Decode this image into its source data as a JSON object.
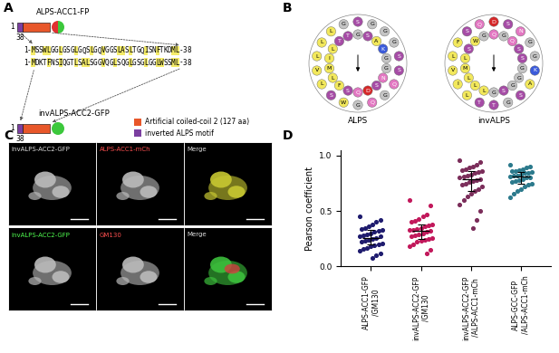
{
  "panel_labels": [
    "A",
    "B",
    "C",
    "D"
  ],
  "schematic": {
    "constructs": [
      {
        "name": "ALPS-ACC1-FP",
        "start": 1,
        "end": 38,
        "fp_colors": [
          "#e03030",
          "#3cc83c"
        ]
      },
      {
        "name": "invALPS-ACC2-GFP",
        "start": 1,
        "end": 38,
        "fp_colors": [
          "#3cc83c",
          "#3cc83c"
        ]
      }
    ],
    "sequences": [
      "1-MSSWLGGLGSGLGQSLGQVGGSLASLTGQISNFTKDML-38",
      "1-MDKTFNSIQGTLSALSGGVQGLSQGLGSGLGGLWSSML-38"
    ],
    "legend": [
      {
        "label": "Artificial coiled-coil 2 (127 aa)",
        "color": "#e8572a"
      },
      {
        "label": "inverted ALPS motif",
        "color": "#7b3fa0"
      }
    ]
  },
  "helical_wheels": {
    "labels": [
      "ALPS",
      "invALPS"
    ]
  },
  "images": {
    "rows": [
      [
        "invALPS-ACC2-GFP",
        "ALPS-ACC1-mCh",
        "Merge"
      ],
      [
        "invALPS-ACC2-GFP",
        "GM130",
        "Merge"
      ]
    ]
  },
  "chart_data": {
    "type": "scatter",
    "ylabel": "Pearson coefficient",
    "categories": [
      "ALPS-ACC1-GFP/GM130",
      "invALPS-ACC2-GFP/GM130",
      "invALPS-ACC2-GFP/ALPS-ACC1-mCh",
      "ALPS-GCC-GFP/ALPS-ACC1-mCh"
    ],
    "colors": [
      "#1e1b6e",
      "#c2185b",
      "#7b2d5a",
      "#2b7a8c"
    ],
    "values": [
      [
        0.45,
        0.42,
        0.4,
        0.38,
        0.36,
        0.35,
        0.34,
        0.33,
        0.32,
        0.31,
        0.3,
        0.29,
        0.28,
        0.27,
        0.27,
        0.26,
        0.25,
        0.24,
        0.23,
        0.22,
        0.21,
        0.2,
        0.19,
        0.18,
        0.17,
        0.16,
        0.14,
        0.12,
        0.1,
        0.08
      ],
      [
        0.6,
        0.55,
        0.47,
        0.45,
        0.43,
        0.41,
        0.4,
        0.38,
        0.37,
        0.36,
        0.35,
        0.34,
        0.33,
        0.33,
        0.32,
        0.31,
        0.3,
        0.29,
        0.28,
        0.27,
        0.26,
        0.25,
        0.24,
        0.23,
        0.22,
        0.2,
        0.18,
        0.15,
        0.12
      ],
      [
        0.96,
        0.94,
        0.92,
        0.9,
        0.89,
        0.88,
        0.87,
        0.86,
        0.85,
        0.84,
        0.83,
        0.82,
        0.81,
        0.8,
        0.79,
        0.78,
        0.77,
        0.76,
        0.75,
        0.74,
        0.72,
        0.7,
        0.68,
        0.66,
        0.63,
        0.6,
        0.56,
        0.5,
        0.42,
        0.35
      ],
      [
        0.92,
        0.9,
        0.89,
        0.88,
        0.87,
        0.86,
        0.86,
        0.85,
        0.84,
        0.84,
        0.83,
        0.82,
        0.82,
        0.81,
        0.8,
        0.8,
        0.79,
        0.78,
        0.77,
        0.76,
        0.75,
        0.74,
        0.72,
        0.7,
        0.68,
        0.66,
        0.62
      ]
    ],
    "medians": [
      0.26,
      0.32,
      0.79,
      0.81
    ],
    "iqr_low": [
      0.2,
      0.25,
      0.68,
      0.75
    ],
    "iqr_high": [
      0.33,
      0.38,
      0.86,
      0.85
    ],
    "ylim": [
      0,
      1.05
    ],
    "yticks": [
      {
        "value": 0,
        "label": "0.0"
      },
      0.5,
      1.0
    ]
  }
}
